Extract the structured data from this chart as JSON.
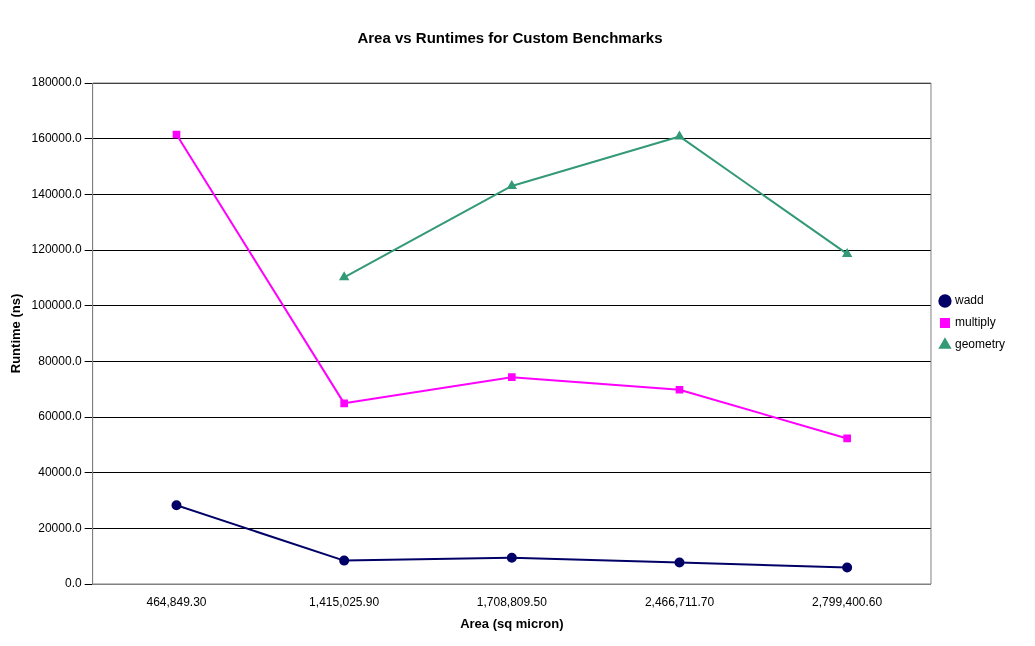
{
  "chart_data": {
    "type": "line",
    "title": "Area vs Runtimes for Custom Benchmarks",
    "xlabel": "Area (sq micron)",
    "ylabel": "Runtime (ns)",
    "categories": [
      "464,849.30",
      "1,415,025.90",
      "1,708,809.50",
      "2,466,711.70",
      "2,799,400.60"
    ],
    "series": [
      {
        "name": "wadd",
        "color": "#000066",
        "marker": "circle",
        "values": [
          28300,
          8400,
          9400,
          7700,
          5900
        ]
      },
      {
        "name": "multiply",
        "color": "#ff00ff",
        "marker": "square",
        "values": [
          161500,
          64900,
          74300,
          69800,
          52300
        ]
      },
      {
        "name": "geometry",
        "color": "#339977",
        "marker": "triangle",
        "values": [
          null,
          110200,
          143000,
          160800,
          118600
        ]
      }
    ],
    "ylim": [
      0,
      180000
    ],
    "yticks": [
      {
        "value": 0,
        "label": "0.0"
      },
      {
        "value": 20000,
        "label": "20000.0"
      },
      {
        "value": 40000,
        "label": "40000.0"
      },
      {
        "value": 60000,
        "label": "60000.0"
      },
      {
        "value": 80000,
        "label": "80000.0"
      },
      {
        "value": 100000,
        "label": "100000.0"
      },
      {
        "value": 120000,
        "label": "120000.0"
      },
      {
        "value": 140000,
        "label": "140000.0"
      },
      {
        "value": 160000,
        "label": "160000.0"
      },
      {
        "value": 180000,
        "label": "180000.0"
      }
    ],
    "grid": "y",
    "legend": "right"
  }
}
